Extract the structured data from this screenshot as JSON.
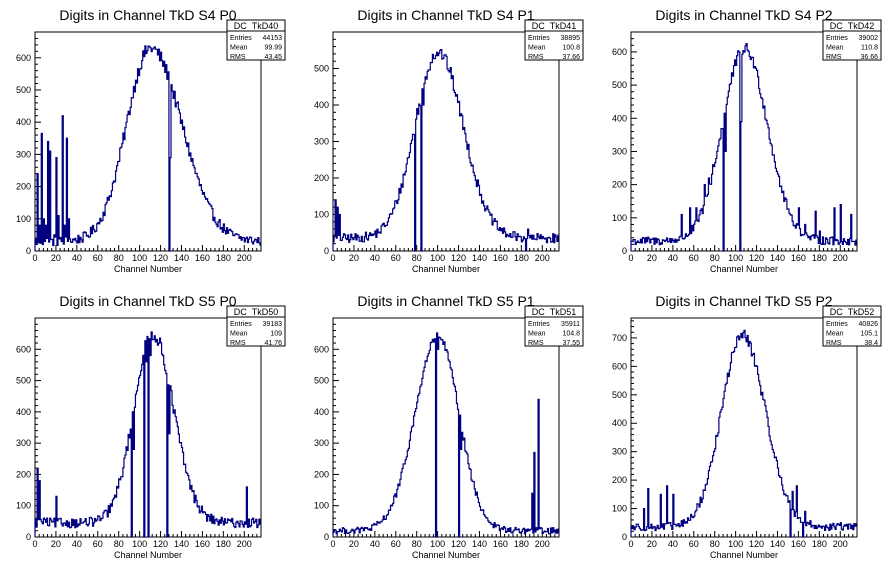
{
  "chart_data": [
    {
      "type": "histogram",
      "title": "Digits in Channel TkD S4 P0",
      "xlabel": "Channel Number",
      "ylabel": "",
      "xlim": [
        0,
        216
      ],
      "ylim": [
        0,
        680
      ],
      "xticks": [
        0,
        20,
        40,
        60,
        80,
        100,
        120,
        140,
        160,
        180,
        200
      ],
      "yticks": [
        0,
        100,
        200,
        300,
        400,
        500,
        600
      ],
      "series_name": "DC_TkD40",
      "stats": [
        {
          "label": "Entries",
          "value": "44153"
        },
        {
          "label": "Mean",
          "value": "99.99"
        },
        {
          "label": "RMS",
          "value": "43.45"
        }
      ],
      "peak": {
        "x": 110,
        "y": 630
      },
      "sigma_left": 23,
      "sigma_right": 30,
      "baseline": 30,
      "noise": 22,
      "spikes": [
        {
          "x": 2,
          "y": 240
        },
        {
          "x": 4,
          "y": 80
        },
        {
          "x": 6,
          "y": 365
        },
        {
          "x": 8,
          "y": 100
        },
        {
          "x": 10,
          "y": 80
        },
        {
          "x": 12,
          "y": 340
        },
        {
          "x": 14,
          "y": 310
        },
        {
          "x": 18,
          "y": 50
        },
        {
          "x": 20,
          "y": 290
        },
        {
          "x": 22,
          "y": 110
        },
        {
          "x": 26,
          "y": 420
        },
        {
          "x": 28,
          "y": 80
        },
        {
          "x": 30,
          "y": 350
        },
        {
          "x": 32,
          "y": 100
        },
        {
          "x": 128,
          "y": 0
        },
        {
          "x": 129,
          "y": 290
        }
      ]
    },
    {
      "type": "histogram",
      "title": "Digits in Channel TkD S4 P1",
      "xlabel": "Channel Number",
      "ylabel": "",
      "xlim": [
        0,
        216
      ],
      "ylim": [
        0,
        600
      ],
      "xticks": [
        0,
        20,
        40,
        60,
        80,
        100,
        120,
        140,
        160,
        180,
        200
      ],
      "yticks": [
        0,
        100,
        200,
        300,
        400,
        500
      ],
      "series_name": "DC_TkD41",
      "stats": [
        {
          "label": "Entries",
          "value": "38895"
        },
        {
          "label": "Mean",
          "value": "100.8"
        },
        {
          "label": "RMS",
          "value": "37.66"
        }
      ],
      "peak": {
        "x": 100,
        "y": 545
      },
      "sigma_left": 22,
      "sigma_right": 24,
      "baseline": 35,
      "noise": 18,
      "spikes": [
        {
          "x": 2,
          "y": 140
        },
        {
          "x": 4,
          "y": 120
        },
        {
          "x": 6,
          "y": 100
        },
        {
          "x": 78,
          "y": 0
        },
        {
          "x": 80,
          "y": 390
        },
        {
          "x": 84,
          "y": 0
        },
        {
          "x": 86,
          "y": 400
        },
        {
          "x": 184,
          "y": 0
        },
        {
          "x": 186,
          "y": 60
        }
      ]
    },
    {
      "type": "histogram",
      "title": "Digits in Channel TkD S4 P2",
      "xlabel": "Channel Number",
      "ylabel": "",
      "xlim": [
        0,
        216
      ],
      "ylim": [
        0,
        660
      ],
      "xticks": [
        0,
        20,
        40,
        60,
        80,
        100,
        120,
        140,
        160,
        180,
        200
      ],
      "yticks": [
        0,
        100,
        200,
        300,
        400,
        500,
        600
      ],
      "series_name": "DC_TkD42",
      "stats": [
        {
          "label": "Entries",
          "value": "39002"
        },
        {
          "label": "Mean",
          "value": "110.8"
        },
        {
          "label": "RMS",
          "value": "36.66"
        }
      ],
      "peak": {
        "x": 108,
        "y": 610
      },
      "sigma_left": 21,
      "sigma_right": 22,
      "baseline": 30,
      "noise": 18,
      "spikes": [
        {
          "x": 48,
          "y": 110
        },
        {
          "x": 56,
          "y": 130
        },
        {
          "x": 62,
          "y": 130
        },
        {
          "x": 70,
          "y": 200
        },
        {
          "x": 74,
          "y": 220
        },
        {
          "x": 78,
          "y": 260
        },
        {
          "x": 82,
          "y": 300
        },
        {
          "x": 88,
          "y": 0
        },
        {
          "x": 90,
          "y": 300
        },
        {
          "x": 104,
          "y": 0
        },
        {
          "x": 105,
          "y": 390
        },
        {
          "x": 160,
          "y": 130
        },
        {
          "x": 166,
          "y": 80
        },
        {
          "x": 176,
          "y": 120
        },
        {
          "x": 180,
          "y": 60
        },
        {
          "x": 190,
          "y": 40
        },
        {
          "x": 194,
          "y": 130
        },
        {
          "x": 200,
          "y": 140
        },
        {
          "x": 206,
          "y": 20
        },
        {
          "x": 210,
          "y": 110
        }
      ]
    },
    {
      "type": "histogram",
      "title": "Digits in Channel TkD S5 P0",
      "xlabel": "Channel Number",
      "ylabel": "",
      "xlim": [
        0,
        216
      ],
      "ylim": [
        0,
        700
      ],
      "xticks": [
        0,
        20,
        40,
        60,
        80,
        100,
        120,
        140,
        160,
        180,
        200
      ],
      "yticks": [
        0,
        100,
        200,
        300,
        400,
        500,
        600
      ],
      "series_name": "DC_TkD50",
      "stats": [
        {
          "label": "Entries",
          "value": "39183"
        },
        {
          "label": "Mean",
          "value": "109"
        },
        {
          "label": "RMS",
          "value": "41.76"
        }
      ],
      "peak": {
        "x": 112,
        "y": 650
      },
      "sigma_left": 18,
      "sigma_right": 20,
      "baseline": 45,
      "noise": 22,
      "spikes": [
        {
          "x": 2,
          "y": 220
        },
        {
          "x": 4,
          "y": 180
        },
        {
          "x": 8,
          "y": 60
        },
        {
          "x": 20,
          "y": 130
        },
        {
          "x": 92,
          "y": 0
        },
        {
          "x": 94,
          "y": 280
        },
        {
          "x": 104,
          "y": 0
        },
        {
          "x": 106,
          "y": 560
        },
        {
          "x": 108,
          "y": 0
        },
        {
          "x": 110,
          "y": 580
        },
        {
          "x": 126,
          "y": 0
        },
        {
          "x": 128,
          "y": 330
        },
        {
          "x": 202,
          "y": 160
        },
        {
          "x": 208,
          "y": 60
        }
      ]
    },
    {
      "type": "histogram",
      "title": "Digits in Channel TkD S5 P1",
      "xlabel": "Channel Number",
      "ylabel": "",
      "xlim": [
        0,
        216
      ],
      "ylim": [
        0,
        700
      ],
      "xticks": [
        0,
        20,
        40,
        60,
        80,
        100,
        120,
        140,
        160,
        180,
        200
      ],
      "yticks": [
        0,
        100,
        200,
        300,
        400,
        500,
        600
      ],
      "series_name": "DC_TkD51",
      "stats": [
        {
          "label": "Entries",
          "value": "35911"
        },
        {
          "label": "Mean",
          "value": "104.8"
        },
        {
          "label": "RMS",
          "value": "37.55"
        }
      ],
      "peak": {
        "x": 100,
        "y": 640
      },
      "sigma_left": 22,
      "sigma_right": 20,
      "baseline": 20,
      "noise": 15,
      "spikes": [
        {
          "x": 98,
          "y": 0
        },
        {
          "x": 100,
          "y": 600
        },
        {
          "x": 120,
          "y": 0
        },
        {
          "x": 122,
          "y": 280
        },
        {
          "x": 190,
          "y": 140
        },
        {
          "x": 192,
          "y": 270
        },
        {
          "x": 196,
          "y": 440
        },
        {
          "x": 198,
          "y": 30
        }
      ]
    },
    {
      "type": "histogram",
      "title": "Digits in Channel TkD S5 P2",
      "xlabel": "Channel Number",
      "ylabel": "",
      "xlim": [
        0,
        216
      ],
      "ylim": [
        0,
        770
      ],
      "xticks": [
        0,
        20,
        40,
        60,
        80,
        100,
        120,
        140,
        160,
        180,
        200
      ],
      "yticks": [
        0,
        100,
        200,
        300,
        400,
        500,
        600,
        700
      ],
      "series_name": "DC_TkD52",
      "stats": [
        {
          "label": "Entries",
          "value": "40826"
        },
        {
          "label": "Mean",
          "value": "105.1"
        },
        {
          "label": "RMS",
          "value": "38.4"
        }
      ],
      "peak": {
        "x": 106,
        "y": 710
      },
      "sigma_left": 20,
      "sigma_right": 22,
      "baseline": 35,
      "noise": 20,
      "spikes": [
        {
          "x": 12,
          "y": 100
        },
        {
          "x": 16,
          "y": 170
        },
        {
          "x": 28,
          "y": 150
        },
        {
          "x": 34,
          "y": 180
        },
        {
          "x": 40,
          "y": 150
        },
        {
          "x": 152,
          "y": 0
        },
        {
          "x": 154,
          "y": 160
        },
        {
          "x": 158,
          "y": 180
        },
        {
          "x": 164,
          "y": 0
        },
        {
          "x": 166,
          "y": 90
        },
        {
          "x": 200,
          "y": 50
        }
      ]
    }
  ],
  "colors": {
    "line": "#000080",
    "axis": "#000000",
    "background": "#ffffff"
  }
}
